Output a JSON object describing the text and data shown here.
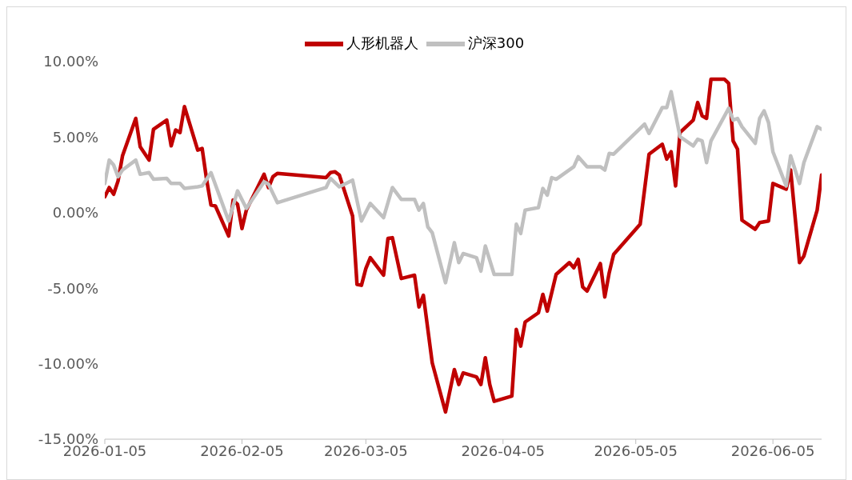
{
  "chart_data": {
    "type": "line",
    "legend": "top",
    "grid": false,
    "marker": "none",
    "line_style": "solid",
    "xlim": [
      "2026-01-05",
      "2026-06-16"
    ],
    "xticks": [
      "2026-01-05",
      "2026-02-05",
      "2026-03-05",
      "2026-04-05",
      "2026-05-05",
      "2026-06-05"
    ],
    "ylim": [
      -15,
      10
    ],
    "yticks": [
      {
        "value": 10,
        "label": "10.00%"
      },
      {
        "value": 5,
        "label": "5.00%"
      },
      {
        "value": 0,
        "label": "0.00%"
      },
      {
        "value": -5,
        "label": "-5.00%"
      },
      {
        "value": -10,
        "label": "-10.00%"
      },
      {
        "value": -15,
        "label": "-15.00%"
      }
    ],
    "series": [
      {
        "name": "人形机器人",
        "color": "#c00000",
        "x": [
          "2026-01-05",
          "2026-01-06",
          "2026-01-07",
          "2026-01-08",
          "2026-01-09",
          "2026-01-12",
          "2026-01-13",
          "2026-01-15",
          "2026-01-16",
          "2026-01-19",
          "2026-01-20",
          "2026-01-21",
          "2026-01-22",
          "2026-01-23",
          "2026-01-26",
          "2026-01-27",
          "2026-01-28",
          "2026-01-29",
          "2026-01-30",
          "2026-02-02",
          "2026-02-03",
          "2026-02-04",
          "2026-02-05",
          "2026-02-06",
          "2026-02-10",
          "2026-02-11",
          "2026-02-12",
          "2026-02-13",
          "2026-02-24",
          "2026-02-25",
          "2026-02-26",
          "2026-02-27",
          "2026-03-02",
          "2026-03-03",
          "2026-03-04",
          "2026-03-05",
          "2026-03-06",
          "2026-03-09",
          "2026-03-10",
          "2026-03-11",
          "2026-03-13",
          "2026-03-16",
          "2026-03-17",
          "2026-03-18",
          "2026-03-20",
          "2026-03-23",
          "2026-03-25",
          "2026-03-26",
          "2026-03-27",
          "2026-03-30",
          "2026-03-31",
          "2026-04-01",
          "2026-04-02",
          "2026-04-03",
          "2026-04-07",
          "2026-04-08",
          "2026-04-09",
          "2026-04-10",
          "2026-04-13",
          "2026-04-14",
          "2026-04-15",
          "2026-04-17",
          "2026-04-20",
          "2026-04-21",
          "2026-04-22",
          "2026-04-23",
          "2026-04-24",
          "2026-04-27",
          "2026-04-28",
          "2026-04-29",
          "2026-04-30",
          "2026-05-06",
          "2026-05-08",
          "2026-05-11",
          "2026-05-12",
          "2026-05-13",
          "2026-05-14",
          "2026-05-15",
          "2026-05-18",
          "2026-05-19",
          "2026-05-20",
          "2026-05-21",
          "2026-05-22",
          "2026-05-25",
          "2026-05-26",
          "2026-05-27",
          "2026-05-28",
          "2026-05-29",
          "2026-06-01",
          "2026-06-02",
          "2026-06-04",
          "2026-06-05",
          "2026-06-08",
          "2026-06-09",
          "2026-06-11",
          "2026-06-12",
          "2026-06-15",
          "2026-06-16"
        ],
        "values": [
          1.05,
          1.66,
          1.22,
          2.1,
          3.76,
          6.24,
          4.36,
          3.48,
          5.52,
          6.13,
          4.42,
          5.47,
          5.3,
          7.02,
          4.14,
          4.25,
          2.21,
          0.5,
          0.44,
          -1.55,
          0.83,
          0.55,
          -1.05,
          0.17,
          2.54,
          1.66,
          2.38,
          2.6,
          2.32,
          2.65,
          2.71,
          2.49,
          -0.22,
          -4.75,
          -4.81,
          -3.7,
          -2.98,
          -4.14,
          -1.71,
          -1.66,
          -4.36,
          -4.14,
          -6.24,
          -5.47,
          -9.94,
          -13.2,
          -10.39,
          -11.38,
          -10.61,
          -10.88,
          -11.38,
          -9.61,
          -11.38,
          -12.49,
          -12.15,
          -7.73,
          -8.84,
          -7.24,
          -6.63,
          -5.41,
          -6.52,
          -4.09,
          -3.31,
          -3.65,
          -3.09,
          -4.92,
          -5.19,
          -3.37,
          -5.58,
          -3.98,
          -2.76,
          -0.77,
          3.87,
          4.53,
          3.54,
          4.03,
          1.77,
          5.3,
          6.13,
          7.29,
          6.41,
          6.24,
          8.84,
          8.84,
          8.56,
          4.75,
          4.2,
          -0.5,
          -1.1,
          -0.66,
          -0.55,
          1.93,
          1.55,
          2.82,
          -3.31,
          -2.87,
          0.17,
          2.49
        ]
      },
      {
        "name": "沪深300",
        "color": "#c0c0c0",
        "x": [
          "2026-01-05",
          "2026-01-06",
          "2026-01-07",
          "2026-01-08",
          "2026-01-09",
          "2026-01-12",
          "2026-01-13",
          "2026-01-15",
          "2026-01-16",
          "2026-01-19",
          "2026-01-20",
          "2026-01-22",
          "2026-01-23",
          "2026-01-26",
          "2026-01-27",
          "2026-01-29",
          "2026-02-02",
          "2026-02-04",
          "2026-02-06",
          "2026-02-10",
          "2026-02-11",
          "2026-02-13",
          "2026-02-24",
          "2026-02-25",
          "2026-02-27",
          "2026-03-02",
          "2026-03-04",
          "2026-03-06",
          "2026-03-09",
          "2026-03-11",
          "2026-03-13",
          "2026-03-16",
          "2026-03-17",
          "2026-03-18",
          "2026-03-19",
          "2026-03-20",
          "2026-03-23",
          "2026-03-25",
          "2026-03-26",
          "2026-03-27",
          "2026-03-30",
          "2026-03-31",
          "2026-04-01",
          "2026-04-03",
          "2026-04-07",
          "2026-04-08",
          "2026-04-09",
          "2026-04-10",
          "2026-04-13",
          "2026-04-14",
          "2026-04-15",
          "2026-04-16",
          "2026-04-17",
          "2026-04-21",
          "2026-04-22",
          "2026-04-24",
          "2026-04-27",
          "2026-04-28",
          "2026-04-29",
          "2026-04-30",
          "2026-05-07",
          "2026-05-08",
          "2026-05-11",
          "2026-05-12",
          "2026-05-13",
          "2026-05-15",
          "2026-05-18",
          "2026-05-19",
          "2026-05-20",
          "2026-05-21",
          "2026-05-22",
          "2026-05-26",
          "2026-05-27",
          "2026-05-28",
          "2026-05-29",
          "2026-06-01",
          "2026-06-02",
          "2026-06-03",
          "2026-06-04",
          "2026-06-05",
          "2026-06-08",
          "2026-06-09",
          "2026-06-11",
          "2026-06-12",
          "2026-06-15",
          "2026-06-16"
        ],
        "values": [
          1.93,
          3.48,
          3.15,
          2.38,
          2.82,
          3.48,
          2.54,
          2.65,
          2.21,
          2.27,
          1.93,
          1.93,
          1.6,
          1.71,
          1.77,
          2.65,
          -0.55,
          1.44,
          0.28,
          2.04,
          1.88,
          0.66,
          1.66,
          2.27,
          1.71,
          2.15,
          -0.55,
          0.61,
          -0.33,
          1.66,
          0.88,
          0.88,
          0.17,
          0.61,
          -0.94,
          -1.33,
          -4.64,
          -1.99,
          -3.31,
          -2.71,
          -2.98,
          -3.87,
          -2.21,
          -4.09,
          -4.09,
          -0.77,
          -1.38,
          0.17,
          0.33,
          1.6,
          1.16,
          2.32,
          2.21,
          3.04,
          3.7,
          3.04,
          3.04,
          2.82,
          3.92,
          3.87,
          5.86,
          5.25,
          6.96,
          6.96,
          8.01,
          5.03,
          4.42,
          4.86,
          4.75,
          3.31,
          4.75,
          6.91,
          6.13,
          6.24,
          5.69,
          4.59,
          6.24,
          6.74,
          5.97,
          4.03,
          1.77,
          3.76,
          1.93,
          3.31,
          5.69,
          5.52
        ]
      }
    ]
  }
}
